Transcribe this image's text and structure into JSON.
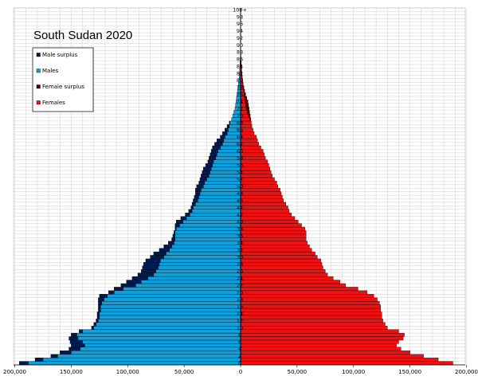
{
  "chart_data": {
    "type": "bar",
    "title": "South Sudan 2020",
    "orientation": "horizontal-pyramid",
    "xlim": [
      -200000,
      200000
    ],
    "x_tick_labels": [
      "200,000",
      "150,000",
      "100,000",
      "50,000",
      "0",
      "50,000",
      "100,000",
      "150,000",
      "200,000"
    ],
    "age_labels": [
      "0",
      "2",
      "4",
      "6",
      "8",
      "10",
      "12",
      "14",
      "16",
      "18",
      "20",
      "22",
      "24",
      "26",
      "28",
      "30",
      "32",
      "34",
      "36",
      "38",
      "40",
      "42",
      "44",
      "46",
      "48",
      "50",
      "52",
      "54",
      "56",
      "58",
      "60",
      "62",
      "64",
      "66",
      "68",
      "70",
      "72",
      "74",
      "76",
      "78",
      "80",
      "82",
      "84",
      "86",
      "88",
      "90",
      "92",
      "94",
      "96",
      "98",
      "100+"
    ],
    "legend": {
      "position": "top-left",
      "entries": [
        {
          "label": "Male surplus",
          "color": "#001b50"
        },
        {
          "label": "Males",
          "color": "#0fa0dc"
        },
        {
          "label": "Female surplus",
          "color": "#5a0000"
        },
        {
          "label": "Females",
          "color": "#ee1111"
        }
      ]
    },
    "colors": {
      "male": "#0fa0dc",
      "male_surplus": "#001b50",
      "female": "#ee1111",
      "female_surplus": "#5a0000"
    },
    "male_anchors": [
      [
        0,
        196000
      ],
      [
        1,
        182000
      ],
      [
        2,
        168000
      ],
      [
        3,
        160000
      ],
      [
        4,
        152000
      ],
      [
        5,
        150000
      ],
      [
        6,
        151000
      ],
      [
        7,
        152000
      ],
      [
        8,
        150000
      ],
      [
        9,
        143000
      ],
      [
        10,
        132000
      ],
      [
        11,
        130000
      ],
      [
        12,
        128000
      ],
      [
        13,
        127000
      ],
      [
        14,
        127000
      ],
      [
        15,
        126000
      ],
      [
        16,
        126000
      ],
      [
        17,
        126000
      ],
      [
        18,
        126000
      ],
      [
        19,
        125000
      ],
      [
        20,
        117000
      ],
      [
        21,
        112000
      ],
      [
        22,
        106000
      ],
      [
        23,
        101000
      ],
      [
        24,
        96000
      ],
      [
        25,
        91000
      ],
      [
        26,
        88000
      ],
      [
        27,
        87000
      ],
      [
        28,
        86000
      ],
      [
        29,
        84000
      ],
      [
        30,
        80000
      ],
      [
        31,
        77000
      ],
      [
        32,
        72000
      ],
      [
        33,
        68000
      ],
      [
        34,
        64000
      ],
      [
        35,
        61000
      ],
      [
        36,
        60000
      ],
      [
        37,
        59000
      ],
      [
        38,
        58000
      ],
      [
        39,
        58000
      ],
      [
        40,
        57000
      ],
      [
        41,
        53000
      ],
      [
        42,
        49000
      ],
      [
        43,
        46000
      ],
      [
        44,
        44000
      ],
      [
        45,
        43000
      ],
      [
        46,
        42000
      ],
      [
        47,
        41000
      ],
      [
        48,
        40000
      ],
      [
        49,
        40000
      ],
      [
        50,
        39000
      ],
      [
        51,
        37000
      ],
      [
        52,
        36000
      ],
      [
        53,
        35000
      ],
      [
        54,
        34000
      ],
      [
        55,
        33000
      ],
      [
        56,
        31000
      ],
      [
        57,
        29000
      ],
      [
        58,
        28000
      ],
      [
        59,
        27000
      ],
      [
        60,
        26000
      ],
      [
        61,
        25000
      ],
      [
        62,
        23000
      ],
      [
        63,
        21000
      ],
      [
        64,
        18000
      ],
      [
        65,
        16000
      ],
      [
        66,
        14000
      ],
      [
        67,
        12000
      ],
      [
        68,
        10000
      ],
      [
        69,
        8000
      ],
      [
        70,
        7000
      ],
      [
        71,
        6000
      ],
      [
        72,
        5000
      ],
      [
        73,
        4500
      ],
      [
        74,
        4000
      ],
      [
        75,
        3600
      ],
      [
        76,
        3200
      ],
      [
        77,
        2800
      ],
      [
        78,
        2400
      ],
      [
        79,
        2000
      ],
      [
        80,
        1600
      ],
      [
        81,
        1300
      ],
      [
        82,
        1000
      ],
      [
        83,
        800
      ],
      [
        84,
        600
      ],
      [
        85,
        450
      ],
      [
        86,
        320
      ],
      [
        87,
        220
      ],
      [
        88,
        150
      ],
      [
        89,
        100
      ],
      [
        90,
        70
      ],
      [
        92,
        40
      ],
      [
        95,
        15
      ],
      [
        100,
        5
      ]
    ],
    "female_anchors": [
      [
        0,
        188000
      ],
      [
        1,
        175000
      ],
      [
        2,
        162000
      ],
      [
        3,
        150000
      ],
      [
        4,
        142000
      ],
      [
        5,
        138000
      ],
      [
        6,
        140000
      ],
      [
        7,
        144000
      ],
      [
        8,
        145000
      ],
      [
        9,
        140000
      ],
      [
        10,
        130000
      ],
      [
        11,
        128000
      ],
      [
        12,
        126000
      ],
      [
        13,
        125000
      ],
      [
        14,
        125000
      ],
      [
        15,
        124000
      ],
      [
        16,
        124000
      ],
      [
        17,
        123000
      ],
      [
        18,
        121000
      ],
      [
        19,
        118000
      ],
      [
        20,
        112000
      ],
      [
        21,
        104000
      ],
      [
        22,
        93000
      ],
      [
        23,
        88000
      ],
      [
        24,
        82000
      ],
      [
        25,
        77000
      ],
      [
        26,
        75000
      ],
      [
        27,
        73000
      ],
      [
        28,
        72000
      ],
      [
        29,
        71000
      ],
      [
        30,
        68000
      ],
      [
        31,
        66000
      ],
      [
        32,
        63000
      ],
      [
        33,
        61000
      ],
      [
        34,
        59000
      ],
      [
        35,
        58000
      ],
      [
        36,
        58000
      ],
      [
        37,
        58000
      ],
      [
        38,
        57000
      ],
      [
        39,
        54000
      ],
      [
        40,
        51000
      ],
      [
        41,
        48000
      ],
      [
        42,
        45000
      ],
      [
        43,
        43000
      ],
      [
        44,
        42000
      ],
      [
        45,
        40000
      ],
      [
        46,
        38000
      ],
      [
        47,
        37000
      ],
      [
        48,
        36000
      ],
      [
        49,
        35000
      ],
      [
        50,
        33000
      ],
      [
        51,
        32000
      ],
      [
        52,
        30000
      ],
      [
        53,
        28000
      ],
      [
        54,
        27000
      ],
      [
        55,
        26000
      ],
      [
        56,
        25000
      ],
      [
        57,
        24000
      ],
      [
        58,
        22000
      ],
      [
        59,
        21000
      ],
      [
        60,
        20000
      ],
      [
        61,
        18000
      ],
      [
        62,
        16000
      ],
      [
        63,
        15000
      ],
      [
        64,
        14000
      ],
      [
        65,
        12000
      ],
      [
        66,
        11000
      ],
      [
        67,
        10000
      ],
      [
        68,
        9500
      ],
      [
        69,
        9000
      ],
      [
        70,
        8500
      ],
      [
        71,
        8000
      ],
      [
        72,
        7500
      ],
      [
        73,
        7000
      ],
      [
        74,
        6500
      ],
      [
        75,
        5500
      ],
      [
        76,
        4500
      ],
      [
        77,
        3600
      ],
      [
        78,
        2900
      ],
      [
        79,
        2300
      ],
      [
        80,
        1900
      ],
      [
        81,
        1500
      ],
      [
        82,
        1200
      ],
      [
        83,
        950
      ],
      [
        84,
        750
      ],
      [
        85,
        600
      ],
      [
        86,
        450
      ],
      [
        87,
        330
      ],
      [
        88,
        240
      ],
      [
        89,
        170
      ],
      [
        90,
        120
      ],
      [
        92,
        60
      ],
      [
        95,
        20
      ],
      [
        100,
        6
      ]
    ]
  }
}
